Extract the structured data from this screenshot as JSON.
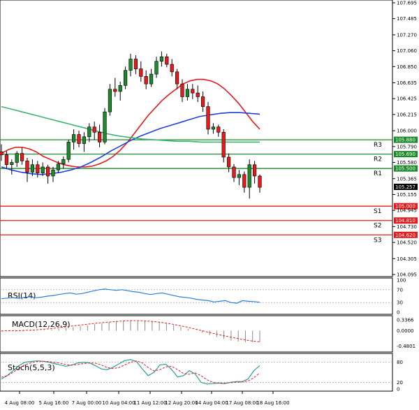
{
  "chart_data": {
    "type": "candlestick",
    "price_axis": {
      "ylim": [
        104.095,
        107.695
      ],
      "tick_labels": [
        "107.695",
        "107.485",
        "107.270",
        "107.060",
        "106.850",
        "106.635",
        "106.425",
        "106.215",
        "106.000",
        "105.790",
        "105.580",
        "105.365",
        "105.155",
        "104.945",
        "104.730",
        "104.520",
        "104.305",
        "104.095"
      ],
      "current_price": "105.257"
    },
    "time_axis": {
      "labels": [
        "4 Aug 08:00",
        "5 Aug 16:00",
        "7 Aug 00:00",
        "10 Aug 04:00",
        "11 Aug 12:00",
        "12 Aug 20:00",
        "14 Aug 04:00",
        "17 Aug 08:00",
        "18 Aug 16:00"
      ]
    },
    "candles": [
      {
        "o": 105.72,
        "h": 105.82,
        "l": 105.6,
        "c": 105.68
      },
      {
        "o": 105.68,
        "h": 105.73,
        "l": 105.5,
        "c": 105.55
      },
      {
        "o": 105.55,
        "h": 105.62,
        "l": 105.42,
        "c": 105.58
      },
      {
        "o": 105.58,
        "h": 105.73,
        "l": 105.52,
        "c": 105.7
      },
      {
        "o": 105.7,
        "h": 105.78,
        "l": 105.55,
        "c": 105.6
      },
      {
        "o": 105.6,
        "h": 105.64,
        "l": 105.32,
        "c": 105.45
      },
      {
        "o": 105.45,
        "h": 105.62,
        "l": 105.4,
        "c": 105.55
      },
      {
        "o": 105.55,
        "h": 105.6,
        "l": 105.38,
        "c": 105.44
      },
      {
        "o": 105.44,
        "h": 105.58,
        "l": 105.4,
        "c": 105.52
      },
      {
        "o": 105.52,
        "h": 105.55,
        "l": 105.3,
        "c": 105.4
      },
      {
        "o": 105.4,
        "h": 105.52,
        "l": 105.32,
        "c": 105.48
      },
      {
        "o": 105.48,
        "h": 105.6,
        "l": 105.44,
        "c": 105.56
      },
      {
        "o": 105.56,
        "h": 105.66,
        "l": 105.5,
        "c": 105.62
      },
      {
        "o": 105.62,
        "h": 105.88,
        "l": 105.58,
        "c": 105.85
      },
      {
        "o": 105.85,
        "h": 106.02,
        "l": 105.75,
        "c": 105.95
      },
      {
        "o": 105.95,
        "h": 106.0,
        "l": 105.78,
        "c": 105.83
      },
      {
        "o": 105.83,
        "h": 105.98,
        "l": 105.72,
        "c": 105.92
      },
      {
        "o": 105.92,
        "h": 106.1,
        "l": 105.85,
        "c": 106.05
      },
      {
        "o": 106.05,
        "h": 106.12,
        "l": 105.88,
        "c": 105.98
      },
      {
        "o": 105.98,
        "h": 106.08,
        "l": 105.78,
        "c": 105.85
      },
      {
        "o": 105.85,
        "h": 106.3,
        "l": 105.82,
        "c": 106.25
      },
      {
        "o": 106.25,
        "h": 106.62,
        "l": 106.2,
        "c": 106.55
      },
      {
        "o": 106.55,
        "h": 106.7,
        "l": 106.45,
        "c": 106.52
      },
      {
        "o": 106.52,
        "h": 106.65,
        "l": 106.4,
        "c": 106.6
      },
      {
        "o": 106.6,
        "h": 106.85,
        "l": 106.55,
        "c": 106.8
      },
      {
        "o": 106.8,
        "h": 107.02,
        "l": 106.72,
        "c": 106.95
      },
      {
        "o": 106.95,
        "h": 107.0,
        "l": 106.75,
        "c": 106.82
      },
      {
        "o": 106.82,
        "h": 106.92,
        "l": 106.65,
        "c": 106.72
      },
      {
        "o": 106.72,
        "h": 106.8,
        "l": 106.55,
        "c": 106.62
      },
      {
        "o": 106.62,
        "h": 106.82,
        "l": 106.58,
        "c": 106.75
      },
      {
        "o": 106.75,
        "h": 106.98,
        "l": 106.7,
        "c": 106.92
      },
      {
        "o": 106.92,
        "h": 107.05,
        "l": 106.85,
        "c": 106.98
      },
      {
        "o": 106.98,
        "h": 107.02,
        "l": 106.84,
        "c": 106.88
      },
      {
        "o": 106.88,
        "h": 106.95,
        "l": 106.72,
        "c": 106.78
      },
      {
        "o": 106.78,
        "h": 106.82,
        "l": 106.55,
        "c": 106.62
      },
      {
        "o": 106.62,
        "h": 106.68,
        "l": 106.38,
        "c": 106.45
      },
      {
        "o": 106.45,
        "h": 106.62,
        "l": 106.4,
        "c": 106.55
      },
      {
        "o": 106.55,
        "h": 106.62,
        "l": 106.42,
        "c": 106.5
      },
      {
        "o": 106.5,
        "h": 106.6,
        "l": 106.38,
        "c": 106.45
      },
      {
        "o": 106.45,
        "h": 106.52,
        "l": 106.25,
        "c": 106.32
      },
      {
        "o": 106.32,
        "h": 106.38,
        "l": 105.95,
        "c": 106.02
      },
      {
        "o": 106.02,
        "h": 106.1,
        "l": 105.96,
        "c": 106.05
      },
      {
        "o": 106.05,
        "h": 106.08,
        "l": 105.92,
        "c": 105.98
      },
      {
        "o": 105.98,
        "h": 106.02,
        "l": 105.58,
        "c": 105.65
      },
      {
        "o": 105.65,
        "h": 105.7,
        "l": 105.45,
        "c": 105.52
      },
      {
        "o": 105.52,
        "h": 105.56,
        "l": 105.32,
        "c": 105.38
      },
      {
        "o": 105.38,
        "h": 105.48,
        "l": 105.28,
        "c": 105.42
      },
      {
        "o": 105.42,
        "h": 105.46,
        "l": 105.18,
        "c": 105.25
      },
      {
        "o": 105.25,
        "h": 105.62,
        "l": 105.1,
        "c": 105.55
      },
      {
        "o": 105.55,
        "h": 105.6,
        "l": 105.3,
        "c": 105.4
      },
      {
        "o": 105.4,
        "h": 105.42,
        "l": 105.18,
        "c": 105.25
      }
    ],
    "moving_averages": [
      {
        "color": "#e8191a",
        "values": [
          105.7,
          105.75,
          105.78,
          105.78,
          105.76,
          105.72,
          105.66,
          105.62,
          105.58,
          105.55,
          105.53,
          105.52,
          105.52,
          105.53,
          105.56,
          105.6,
          105.66,
          105.74,
          105.84,
          105.96,
          106.08,
          106.2,
          106.3,
          106.4,
          106.48,
          106.55,
          106.62,
          106.66,
          106.68,
          106.68,
          106.66,
          106.62,
          106.55,
          106.46,
          106.36,
          106.24,
          106.12,
          106.02
        ]
      },
      {
        "color": "#2040e0",
        "values": [
          105.52,
          105.48,
          105.45,
          105.43,
          105.42,
          105.43,
          105.45,
          105.48,
          105.52,
          105.58,
          105.65,
          105.73,
          105.8,
          105.87,
          105.93,
          105.98,
          106.03,
          106.07,
          106.11,
          106.15,
          106.19,
          106.21,
          106.23,
          106.24,
          106.24,
          106.23,
          106.22
        ]
      },
      {
        "color": "#3cb371",
        "values": [
          106.32,
          106.28,
          106.24,
          106.2,
          106.16,
          106.12,
          106.08,
          106.04,
          106.0,
          105.96,
          105.93,
          105.91,
          105.89,
          105.88,
          105.87,
          105.86,
          105.86,
          105.85,
          105.85,
          105.85,
          105.85,
          105.85,
          105.85
        ]
      }
    ],
    "levels": [
      {
        "name": "R3",
        "value": 105.88,
        "label": "105.880",
        "color": "#1b8a2a"
      },
      {
        "name": "R2",
        "value": 105.69,
        "label": "105.690",
        "color": "#1b8a2a"
      },
      {
        "name": "R1",
        "value": 105.5,
        "label": "105.500",
        "color": "#1b8a2a"
      },
      {
        "name": "S1",
        "value": 105.0,
        "label": "105.000",
        "color": "#e8191a"
      },
      {
        "name": "S2",
        "value": 104.81,
        "label": "104.810",
        "color": "#e8191a"
      },
      {
        "name": "S3",
        "value": 104.62,
        "label": "104.620",
        "color": "#e8191a"
      }
    ],
    "rsi": {
      "label": "RSI(14)",
      "ylim": [
        0,
        100
      ],
      "tick_labels": [
        "100",
        "70",
        "30",
        "0"
      ],
      "guides": [
        70,
        30
      ],
      "color": "#2a7fd4",
      "values": [
        42,
        44,
        45,
        43,
        46,
        48,
        45,
        47,
        50,
        52,
        55,
        58,
        60,
        56,
        58,
        62,
        66,
        70,
        72,
        70,
        68,
        70,
        67,
        64,
        62,
        58,
        55,
        58,
        60,
        56,
        52,
        48,
        46,
        44,
        40,
        38,
        36,
        32,
        34,
        36,
        30,
        28,
        36,
        34,
        33,
        31
      ]
    },
    "macd": {
      "label": "MACD(12,26,9)",
      "ylim": [
        -0.6,
        0.4
      ],
      "tick_labels": [
        "0.3366",
        "0.0000",
        "-0.4801"
      ],
      "histogram": [
        -0.02,
        -0.02,
        -0.03,
        -0.02,
        -0.01,
        0.0,
        0.02,
        0.04,
        0.06,
        0.08,
        0.11,
        0.14,
        0.17,
        0.2,
        0.23,
        0.26,
        0.29,
        0.31,
        0.32,
        0.32,
        0.31,
        0.29,
        0.26,
        0.22,
        0.17,
        0.12,
        0.06,
        0.0,
        -0.07,
        -0.14,
        -0.2,
        -0.26,
        -0.31,
        -0.34,
        -0.36,
        -0.36,
        -0.35
      ],
      "signal_color": "#e8191a",
      "signal": [
        -0.01,
        0.0,
        0.0,
        0.01,
        0.02,
        0.04,
        0.06,
        0.09,
        0.12,
        0.15,
        0.18,
        0.21,
        0.24,
        0.26,
        0.28,
        0.3,
        0.31,
        0.31,
        0.3,
        0.28,
        0.25,
        0.21,
        0.16,
        0.11,
        0.05,
        -0.01,
        -0.07,
        -0.13,
        -0.18,
        -0.23,
        -0.28,
        -0.32,
        -0.35
      ]
    },
    "stoch": {
      "label": "Stoch(5,5,3)",
      "ylim": [
        0,
        100
      ],
      "tick_labels": [
        "80",
        "20",
        "0"
      ],
      "guides": [
        80,
        20
      ],
      "k_color": "#2e9e9a",
      "k": [
        30,
        40,
        55,
        70,
        80,
        82,
        84,
        83,
        80,
        76,
        72,
        68,
        72,
        78,
        80,
        78,
        70,
        60,
        58,
        65,
        75,
        85,
        88,
        82,
        60,
        40,
        50,
        72,
        74,
        58,
        36,
        40,
        55,
        45,
        20,
        15,
        16,
        18,
        16,
        20,
        22,
        22,
        30,
        55,
        70
      ],
      "d_color": "#e8191a",
      "d": [
        35,
        40,
        50,
        62,
        72,
        78,
        82,
        83,
        82,
        80,
        77,
        73,
        71,
        73,
        76,
        78,
        77,
        72,
        64,
        61,
        64,
        72,
        80,
        84,
        78,
        64,
        54,
        58,
        66,
        68,
        58,
        46,
        44,
        48,
        40,
        28,
        20,
        18,
        18,
        19,
        20,
        21,
        24,
        34,
        48
      ]
    }
  }
}
